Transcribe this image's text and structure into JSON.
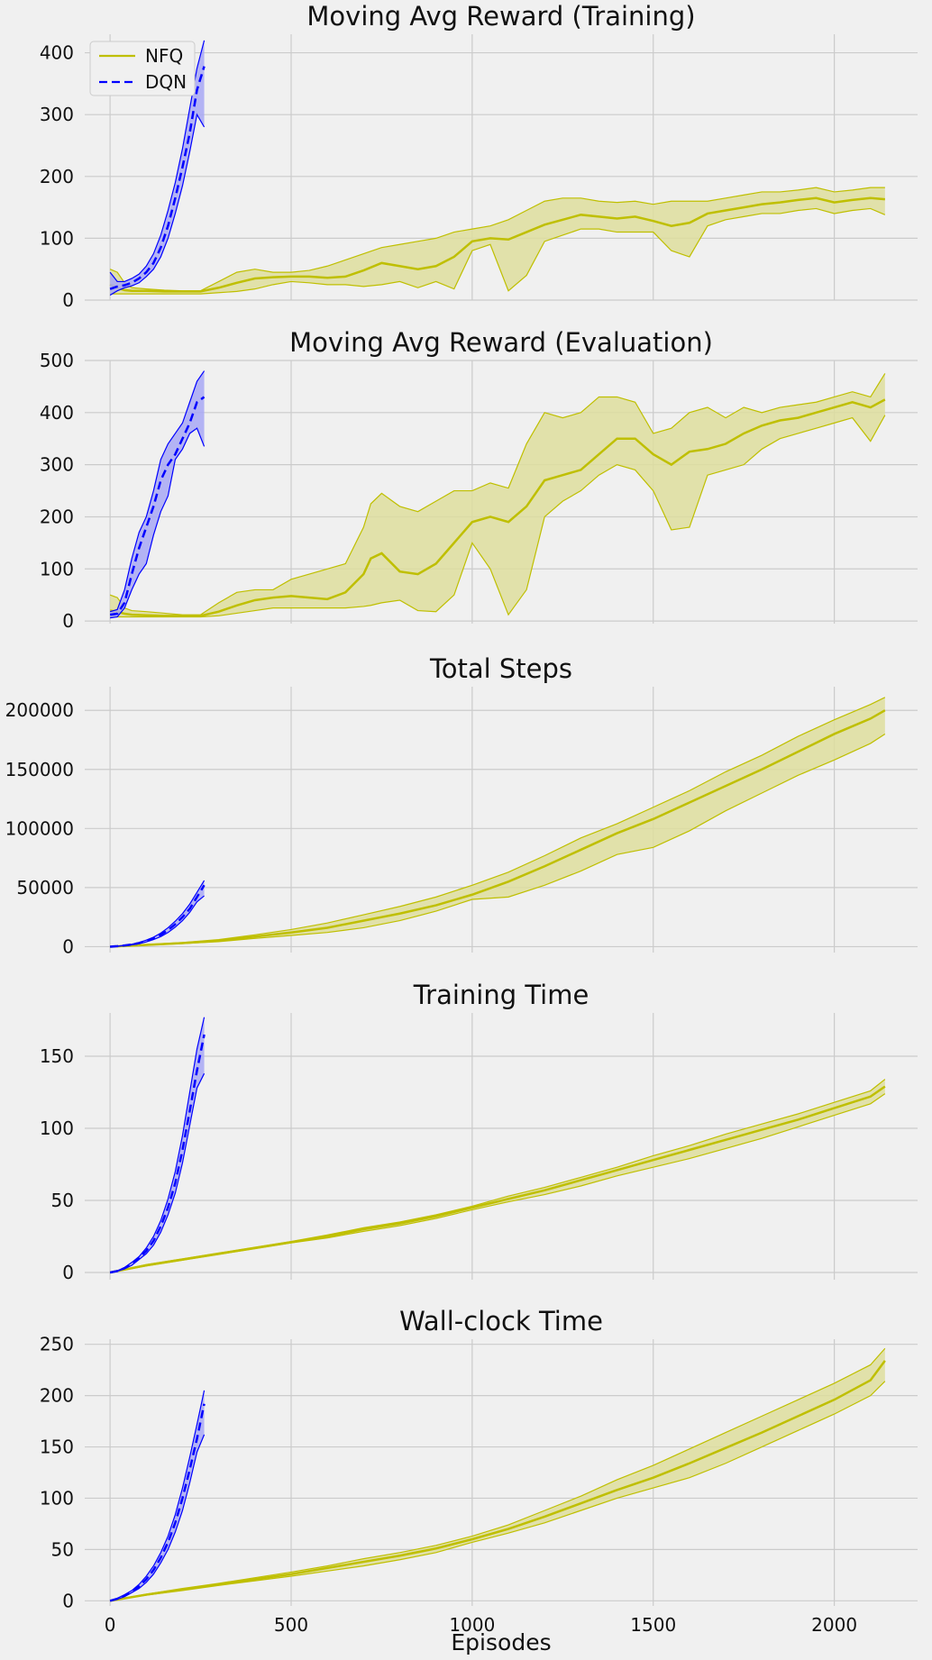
{
  "figure": {
    "xlabel": "Episodes",
    "xlim": [
      -70,
      2230
    ],
    "xticks": [
      0,
      500,
      1000,
      1500,
      2000
    ],
    "xtick_labels": [
      "0",
      "500",
      "1000",
      "1500",
      "2000"
    ],
    "grid": true,
    "legend": {
      "placement": "top-left",
      "entries": [
        {
          "name": "NFQ",
          "color": "#bfbf00",
          "style": "solid"
        },
        {
          "name": "DQN",
          "color": "#0000ff",
          "style": "dashed"
        }
      ]
    },
    "colors": {
      "NFQ": "#bfbf00",
      "NFQ_fill": "#dede9e",
      "DQN": "#0000ff",
      "DQN_fill": "#a8a8f5",
      "background": "#f0f0f0",
      "grid": "#cbcbcb"
    }
  },
  "chart_data": [
    {
      "type": "line",
      "title": "Moving Avg Reward (Training)",
      "ylim": [
        0,
        430
      ],
      "yticks": [
        0,
        100,
        200,
        300,
        400
      ],
      "ytick_labels": [
        "0",
        "100",
        "200",
        "300",
        "400"
      ],
      "series": [
        {
          "name": "NFQ",
          "x": [
            0,
            20,
            40,
            60,
            100,
            150,
            200,
            250,
            300,
            350,
            400,
            450,
            500,
            550,
            600,
            650,
            700,
            750,
            800,
            850,
            900,
            950,
            1000,
            1050,
            1100,
            1150,
            1200,
            1250,
            1300,
            1350,
            1400,
            1450,
            1500,
            1550,
            1600,
            1650,
            1700,
            1750,
            1800,
            1850,
            1900,
            1950,
            2000,
            2050,
            2100,
            2140
          ],
          "mean": [
            25,
            20,
            16,
            15,
            15,
            14,
            14,
            14,
            20,
            28,
            35,
            37,
            38,
            38,
            36,
            38,
            48,
            60,
            55,
            50,
            55,
            70,
            95,
            100,
            98,
            110,
            122,
            130,
            138,
            135,
            132,
            135,
            128,
            120,
            125,
            140,
            145,
            150,
            155,
            158,
            162,
            165,
            158,
            162,
            165,
            163
          ],
          "upper": [
            50,
            45,
            28,
            20,
            18,
            16,
            15,
            15,
            30,
            45,
            50,
            45,
            45,
            48,
            55,
            65,
            75,
            85,
            90,
            95,
            100,
            110,
            115,
            120,
            130,
            145,
            160,
            165,
            165,
            160,
            158,
            160,
            155,
            160,
            160,
            160,
            165,
            170,
            175,
            175,
            178,
            182,
            175,
            178,
            182,
            182
          ],
          "lower": [
            10,
            10,
            10,
            10,
            10,
            10,
            10,
            10,
            12,
            14,
            18,
            25,
            30,
            28,
            25,
            25,
            22,
            25,
            30,
            20,
            30,
            18,
            80,
            90,
            15,
            40,
            95,
            105,
            115,
            115,
            110,
            110,
            110,
            80,
            70,
            120,
            130,
            135,
            140,
            140,
            145,
            148,
            140,
            145,
            148,
            138
          ]
        },
        {
          "name": "DQN",
          "x": [
            0,
            20,
            40,
            60,
            80,
            100,
            120,
            140,
            160,
            180,
            200,
            220,
            240,
            260
          ],
          "mean": [
            18,
            22,
            24,
            28,
            35,
            45,
            60,
            85,
            120,
            165,
            215,
            270,
            340,
            378
          ],
          "upper": [
            45,
            30,
            30,
            35,
            42,
            55,
            75,
            105,
            145,
            190,
            245,
            310,
            375,
            420
          ],
          "lower": [
            8,
            15,
            20,
            23,
            28,
            38,
            50,
            70,
            100,
            140,
            185,
            240,
            300,
            280
          ]
        }
      ]
    },
    {
      "type": "line",
      "title": "Moving Avg Reward (Evaluation)",
      "ylim": [
        -5,
        500
      ],
      "yticks": [
        0,
        100,
        200,
        300,
        400,
        500
      ],
      "ytick_labels": [
        "0",
        "100",
        "200",
        "300",
        "400",
        "500"
      ],
      "series": [
        {
          "name": "NFQ",
          "x": [
            0,
            20,
            40,
            60,
            100,
            150,
            200,
            250,
            300,
            350,
            400,
            450,
            500,
            550,
            600,
            650,
            700,
            720,
            750,
            800,
            850,
            900,
            950,
            1000,
            1050,
            1100,
            1150,
            1200,
            1250,
            1300,
            1350,
            1400,
            1450,
            1500,
            1550,
            1600,
            1650,
            1700,
            1750,
            1800,
            1850,
            1900,
            1950,
            2000,
            2050,
            2100,
            2140
          ],
          "mean": [
            20,
            18,
            14,
            12,
            11,
            10,
            10,
            10,
            18,
            30,
            40,
            45,
            48,
            45,
            42,
            55,
            90,
            120,
            130,
            95,
            90,
            110,
            150,
            190,
            200,
            190,
            220,
            270,
            280,
            290,
            320,
            350,
            350,
            320,
            300,
            325,
            330,
            340,
            360,
            375,
            385,
            390,
            400,
            410,
            420,
            410,
            425
          ],
          "upper": [
            50,
            45,
            25,
            20,
            18,
            15,
            12,
            12,
            35,
            55,
            60,
            60,
            80,
            90,
            100,
            110,
            180,
            225,
            245,
            220,
            210,
            230,
            250,
            250,
            265,
            255,
            340,
            400,
            390,
            400,
            430,
            430,
            420,
            360,
            370,
            400,
            410,
            390,
            410,
            400,
            410,
            415,
            420,
            430,
            440,
            430,
            475
          ],
          "lower": [
            8,
            8,
            8,
            8,
            8,
            8,
            8,
            8,
            10,
            15,
            20,
            25,
            25,
            25,
            25,
            25,
            28,
            30,
            35,
            40,
            20,
            18,
            50,
            150,
            100,
            12,
            60,
            200,
            230,
            250,
            280,
            300,
            290,
            250,
            175,
            180,
            280,
            290,
            300,
            330,
            350,
            360,
            370,
            380,
            390,
            345,
            395
          ]
        },
        {
          "name": "DQN",
          "x": [
            0,
            20,
            40,
            60,
            80,
            100,
            120,
            140,
            160,
            180,
            200,
            220,
            240,
            260
          ],
          "mean": [
            12,
            14,
            35,
            90,
            140,
            180,
            220,
            270,
            300,
            320,
            350,
            380,
            420,
            430
          ],
          "upper": [
            18,
            22,
            60,
            120,
            170,
            200,
            250,
            310,
            340,
            360,
            380,
            420,
            460,
            480
          ],
          "lower": [
            6,
            8,
            25,
            60,
            90,
            110,
            165,
            210,
            240,
            310,
            330,
            360,
            370,
            335
          ]
        }
      ]
    },
    {
      "type": "line",
      "title": "Total Steps",
      "ylim": [
        -5000,
        220000
      ],
      "yticks": [
        0,
        50000,
        100000,
        150000,
        200000
      ],
      "ytick_labels": [
        "0",
        "50000",
        "100000",
        "150000",
        "200000"
      ],
      "series": [
        {
          "name": "NFQ",
          "x": [
            0,
            100,
            200,
            300,
            400,
            500,
            600,
            700,
            800,
            900,
            1000,
            1100,
            1200,
            1300,
            1400,
            1500,
            1600,
            1700,
            1800,
            1900,
            2000,
            2100,
            2140
          ],
          "mean": [
            0,
            1500,
            3000,
            5000,
            8500,
            12000,
            16000,
            22000,
            28000,
            35000,
            44000,
            55000,
            68000,
            82000,
            96000,
            108000,
            122000,
            136000,
            150000,
            165000,
            180000,
            193000,
            200000
          ],
          "upper": [
            0,
            1800,
            3500,
            6000,
            10000,
            14500,
            20000,
            27000,
            34000,
            42000,
            52000,
            63000,
            77000,
            92000,
            104000,
            118000,
            132000,
            148000,
            162000,
            178000,
            192000,
            205000,
            211000
          ],
          "lower": [
            0,
            1200,
            2600,
            4200,
            7000,
            9500,
            12000,
            16000,
            22000,
            30000,
            40000,
            42000,
            52000,
            64000,
            78000,
            84000,
            98000,
            115000,
            130000,
            145000,
            158000,
            172000,
            180000
          ]
        },
        {
          "name": "DQN",
          "x": [
            0,
            20,
            40,
            60,
            80,
            100,
            120,
            140,
            160,
            180,
            200,
            220,
            240,
            260
          ],
          "mean": [
            0,
            400,
            1000,
            1800,
            3000,
            4800,
            7000,
            10000,
            14000,
            19000,
            25000,
            32000,
            42000,
            52000
          ],
          "upper": [
            0,
            500,
            1200,
            2100,
            3500,
            5500,
            8000,
            11500,
            16000,
            21500,
            28000,
            36000,
            46000,
            56000
          ],
          "lower": [
            0,
            300,
            800,
            1500,
            2500,
            4000,
            6000,
            8500,
            12000,
            16500,
            22000,
            29000,
            38000,
            43000
          ]
        }
      ]
    },
    {
      "type": "line",
      "title": "Training Time",
      "ylim": [
        -5,
        180
      ],
      "yticks": [
        0,
        50,
        100,
        150
      ],
      "ytick_labels": [
        "0",
        "50",
        "100",
        "150"
      ],
      "series": [
        {
          "name": "NFQ",
          "x": [
            0,
            100,
            200,
            300,
            400,
            500,
            600,
            700,
            800,
            900,
            1000,
            1100,
            1200,
            1300,
            1400,
            1500,
            1600,
            1700,
            1800,
            1900,
            2000,
            2100,
            2140
          ],
          "mean": [
            0,
            5,
            9,
            13,
            17,
            21,
            25,
            30,
            34,
            39,
            45,
            51,
            57,
            64,
            71,
            78,
            85,
            92,
            99,
            106,
            114,
            122,
            129
          ],
          "upper": [
            0,
            5.5,
            9.5,
            13.5,
            17.5,
            21.5,
            26,
            31,
            35,
            40,
            46,
            53,
            59,
            66,
            73,
            81,
            88,
            96,
            103,
            110,
            118,
            126,
            134
          ],
          "lower": [
            0,
            4.5,
            8.5,
            12.5,
            16.5,
            20.5,
            24,
            28.5,
            32.5,
            37.5,
            43.5,
            49,
            54,
            60,
            67,
            73,
            79,
            86,
            93,
            101,
            109,
            117,
            124
          ]
        },
        {
          "name": "DQN",
          "x": [
            0,
            20,
            40,
            60,
            80,
            100,
            120,
            140,
            160,
            180,
            200,
            220,
            240,
            260
          ],
          "mean": [
            0,
            1,
            3,
            6,
            10,
            15,
            22,
            32,
            45,
            62,
            85,
            112,
            140,
            165
          ],
          "upper": [
            0,
            1.2,
            3.5,
            7,
            11,
            17,
            25,
            36,
            51,
            70,
            95,
            125,
            155,
            177
          ],
          "lower": [
            0,
            0.8,
            2.5,
            5,
            9,
            13,
            19,
            28,
            40,
            55,
            76,
            102,
            128,
            138
          ]
        }
      ]
    },
    {
      "type": "line",
      "title": "Wall-clock Time",
      "ylim": [
        -5,
        255
      ],
      "yticks": [
        0,
        50,
        100,
        150,
        200,
        250
      ],
      "ytick_labels": [
        "0",
        "50",
        "100",
        "150",
        "200",
        "250"
      ],
      "series": [
        {
          "name": "NFQ",
          "x": [
            0,
            100,
            200,
            300,
            400,
            500,
            600,
            700,
            800,
            900,
            1000,
            1100,
            1200,
            1300,
            1400,
            1500,
            1600,
            1700,
            1800,
            1900,
            2000,
            2100,
            2140
          ],
          "mean": [
            0,
            6,
            11,
            16,
            21,
            26,
            32,
            38,
            44,
            51,
            60,
            70,
            82,
            95,
            108,
            120,
            134,
            149,
            164,
            180,
            196,
            215,
            234
          ],
          "upper": [
            0,
            6.5,
            12,
            17,
            22.5,
            28,
            34,
            41,
            47,
            54,
            63,
            74,
            88,
            102,
            118,
            132,
            148,
            164,
            180,
            196,
            212,
            230,
            246
          ],
          "lower": [
            0,
            5.5,
            10,
            15,
            19.5,
            24,
            29,
            34,
            40,
            47,
            57,
            66,
            76,
            88,
            100,
            110,
            120,
            134,
            150,
            166,
            182,
            200,
            214
          ]
        },
        {
          "name": "DQN",
          "x": [
            0,
            20,
            40,
            60,
            80,
            100,
            120,
            140,
            160,
            180,
            200,
            220,
            240,
            260
          ],
          "mean": [
            0,
            2,
            5,
            9,
            14,
            21,
            30,
            42,
            57,
            76,
            100,
            128,
            158,
            192
          ],
          "upper": [
            0,
            2.5,
            6,
            10,
            16,
            24,
            34,
            47,
            63,
            84,
            110,
            140,
            172,
            205
          ],
          "lower": [
            0,
            1.5,
            4,
            8,
            12,
            18,
            26,
            37,
            50,
            67,
            88,
            115,
            145,
            162
          ]
        }
      ]
    }
  ]
}
